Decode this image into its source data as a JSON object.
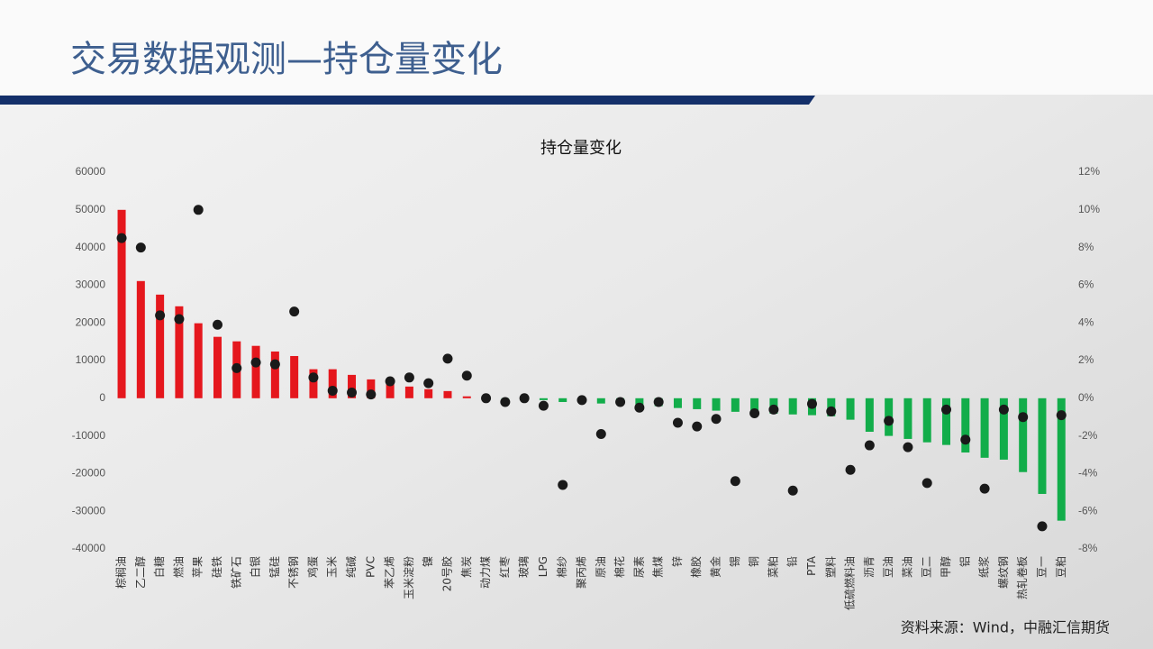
{
  "slide": {
    "title": "交易数据观测—持仓量变化",
    "source": "资料来源：Wind，中融汇信期货"
  },
  "chart_data": {
    "type": "bar",
    "title": "持仓量变化",
    "categories": [
      "棕榈油",
      "乙二醇",
      "白糖",
      "燃油",
      "苹果",
      "硅铁",
      "铁矿石",
      "白银",
      "锰硅",
      "不锈钢",
      "鸡蛋",
      "玉米",
      "纯碱",
      "PVC",
      "苯乙烯",
      "玉米淀粉",
      "镍",
      "20号胶",
      "焦炭",
      "动力煤",
      "红枣",
      "玻璃",
      "LPG",
      "棉纱",
      "聚丙烯",
      "原油",
      "棉花",
      "尿素",
      "焦煤",
      "锌",
      "橡胶",
      "黄金",
      "锡",
      "铜",
      "菜粕",
      "铅",
      "PTA",
      "塑料",
      "低硫燃料油",
      "沥青",
      "豆油",
      "菜油",
      "豆二",
      "甲醇",
      "铝",
      "纸浆",
      "螺纹钢",
      "热轧卷板",
      "豆一",
      "豆粕"
    ],
    "series": [
      {
        "type": "bar",
        "color": "#e5171d",
        "negative_color": "#12ad4a",
        "values": [
          50000,
          31100,
          27500,
          24400,
          19900,
          16300,
          15100,
          13900,
          12400,
          11200,
          7700,
          7700,
          6200,
          5000,
          4500,
          3100,
          2400,
          1900,
          500,
          100,
          -100,
          -200,
          -500,
          -1000,
          -1200,
          -1400,
          -1700,
          -1900,
          -2100,
          -2600,
          -2900,
          -3300,
          -3600,
          -3800,
          -4100,
          -4300,
          -4500,
          -4800,
          -5700,
          -8900,
          -10000,
          -10800,
          -11700,
          -12400,
          -14400,
          -15800,
          -16300,
          -19600,
          -25400,
          -32500
        ]
      },
      {
        "type": "scatter",
        "axis": "y2",
        "color": "#1a1a1a",
        "values": [
          8.5,
          8.0,
          4.4,
          4.2,
          10.0,
          3.9,
          1.6,
          1.9,
          1.8,
          4.6,
          1.1,
          0.4,
          0.3,
          0.2,
          0.9,
          1.1,
          0.8,
          2.1,
          1.2,
          0,
          -0.2,
          0,
          -0.4,
          -4.6,
          -0.1,
          -1.9,
          -0.2,
          -0.5,
          -0.2,
          -1.3,
          -1.5,
          -1.1,
          -4.4,
          -0.8,
          -0.6,
          -4.9,
          -0.3,
          -0.7,
          -3.8,
          -2.5,
          -1.2,
          -2.6,
          -4.5,
          -0.6,
          -2.2,
          -4.8,
          -0.6,
          -1.0,
          -6.8,
          -0.9
        ]
      }
    ],
    "ylim": [
      -40000,
      60000
    ],
    "yticks": [
      -40000,
      -30000,
      -20000,
      -10000,
      0,
      10000,
      20000,
      30000,
      40000,
      50000,
      60000
    ],
    "y2lim": [
      -8,
      12
    ],
    "y2ticks": [
      {
        "value": -8,
        "label": "-8%"
      },
      {
        "value": -6,
        "label": "-6%"
      },
      {
        "value": -4,
        "label": "-4%"
      },
      {
        "value": -2,
        "label": "-2%"
      },
      {
        "value": 0,
        "label": "0%"
      },
      {
        "value": 2,
        "label": "2%"
      },
      {
        "value": 4,
        "label": "4%"
      },
      {
        "value": 6,
        "label": "6%"
      },
      {
        "value": 8,
        "label": "8%"
      },
      {
        "value": 10,
        "label": "10%"
      },
      {
        "value": 12,
        "label": "12%"
      }
    ],
    "grid": false
  }
}
